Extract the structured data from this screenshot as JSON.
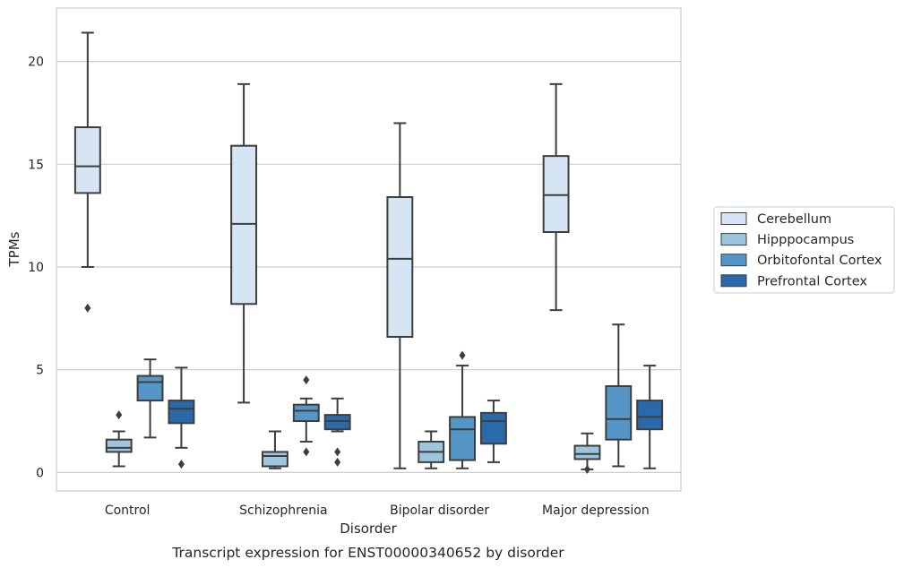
{
  "chart_data": {
    "type": "box",
    "title": "",
    "caption": "Transcript expression for ENST00000340652 by disorder",
    "xlabel": "Disorder",
    "ylabel": "TPMs",
    "ylim": [
      -0.9,
      22.6
    ],
    "yticks": [
      0,
      5,
      10,
      15,
      20
    ],
    "grid": true,
    "legend_position": "right (outside plot)",
    "categories": [
      "Control",
      "Schizophrenia",
      "Bipolar disorder",
      "Major depression"
    ],
    "series": [
      {
        "name": "Cerebellum",
        "color": "#d6e5f3",
        "boxes": [
          {
            "whisker_low": 10.0,
            "q1": 13.6,
            "median": 14.9,
            "q3": 16.8,
            "whisker_high": 21.4,
            "outliers": [
              8.0
            ]
          },
          {
            "whisker_low": 3.4,
            "q1": 8.2,
            "median": 12.1,
            "q3": 15.9,
            "whisker_high": 18.9,
            "outliers": []
          },
          {
            "whisker_low": 0.2,
            "q1": 6.6,
            "median": 10.4,
            "q3": 13.4,
            "whisker_high": 17.0,
            "outliers": []
          },
          {
            "whisker_low": 7.9,
            "q1": 11.7,
            "median": 13.5,
            "q3": 15.4,
            "whisker_high": 18.9,
            "outliers": []
          }
        ]
      },
      {
        "name": "Hipppocampus",
        "color": "#9dc5de",
        "boxes": [
          {
            "whisker_low": 0.3,
            "q1": 1.0,
            "median": 1.2,
            "q3": 1.6,
            "whisker_high": 2.0,
            "outliers": [
              2.8
            ]
          },
          {
            "whisker_low": 0.2,
            "q1": 0.3,
            "median": 0.8,
            "q3": 1.0,
            "whisker_high": 2.0,
            "outliers": []
          },
          {
            "whisker_low": 0.2,
            "q1": 0.5,
            "median": 1.0,
            "q3": 1.5,
            "whisker_high": 2.0,
            "outliers": []
          },
          {
            "whisker_low": 0.15,
            "q1": 0.65,
            "median": 0.9,
            "q3": 1.3,
            "whisker_high": 1.9,
            "outliers": [
              0.15
            ]
          }
        ]
      },
      {
        "name": "Orbitofontal Cortex",
        "color": "#5596c7",
        "boxes": [
          {
            "whisker_low": 1.7,
            "q1": 3.5,
            "median": 4.4,
            "q3": 4.7,
            "whisker_high": 5.5,
            "outliers": []
          },
          {
            "whisker_low": 1.5,
            "q1": 2.5,
            "median": 3.0,
            "q3": 3.3,
            "whisker_high": 3.6,
            "outliers": [
              4.5,
              1.0
            ]
          },
          {
            "whisker_low": 0.2,
            "q1": 0.6,
            "median": 2.1,
            "q3": 2.7,
            "whisker_high": 5.2,
            "outliers": [
              5.7
            ]
          },
          {
            "whisker_low": 0.3,
            "q1": 1.6,
            "median": 2.6,
            "q3": 4.2,
            "whisker_high": 7.2,
            "outliers": []
          }
        ]
      },
      {
        "name": "Prefrontal Cortex",
        "color": "#2b6aaa",
        "boxes": [
          {
            "whisker_low": 1.2,
            "q1": 2.4,
            "median": 3.1,
            "q3": 3.5,
            "whisker_high": 5.1,
            "outliers": [
              0.4
            ]
          },
          {
            "whisker_low": 2.0,
            "q1": 2.1,
            "median": 2.5,
            "q3": 2.8,
            "whisker_high": 3.6,
            "outliers": [
              1.0,
              0.5
            ]
          },
          {
            "whisker_low": 0.5,
            "q1": 1.4,
            "median": 2.5,
            "q3": 2.9,
            "whisker_high": 3.5,
            "outliers": []
          },
          {
            "whisker_low": 0.2,
            "q1": 2.1,
            "median": 2.7,
            "q3": 3.5,
            "whisker_high": 5.2,
            "outliers": []
          }
        ]
      }
    ]
  }
}
